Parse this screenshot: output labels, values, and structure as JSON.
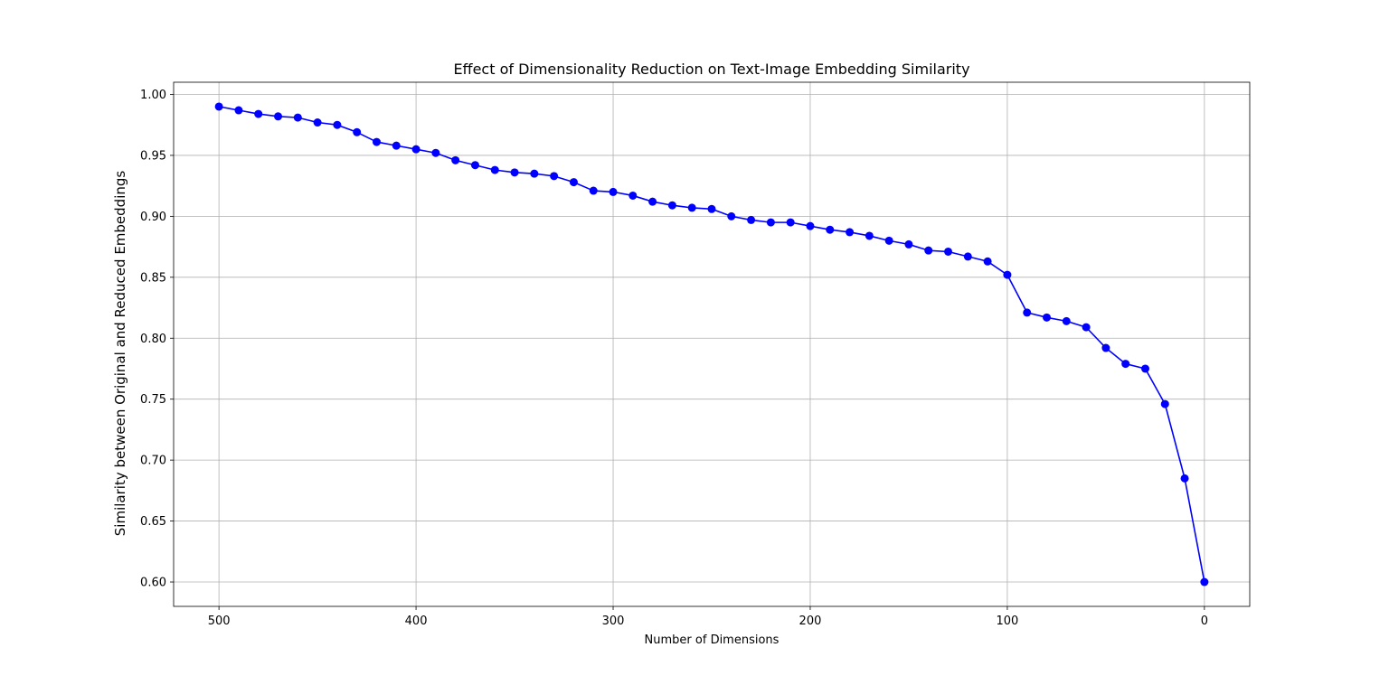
{
  "chart_data": {
    "type": "line",
    "title": "Effect of Dimensionality Reduction on Text-Image Embedding Similarity",
    "xlabel": "Number of Dimensions",
    "ylabel": "Similarity between Original and Reduced Embeddings",
    "xlim": [
      523,
      -23
    ],
    "ylim": [
      0.58,
      1.01
    ],
    "x_inverted": true,
    "grid": true,
    "x_ticks": [
      500,
      400,
      300,
      200,
      100,
      0
    ],
    "y_ticks": [
      1.0,
      0.95,
      0.9,
      0.85,
      0.8,
      0.75,
      0.7,
      0.65,
      0.6
    ],
    "series": [
      {
        "color": "#0000ff",
        "marker": "circle",
        "x": [
          500,
          490,
          480,
          470,
          460,
          450,
          440,
          430,
          420,
          410,
          400,
          390,
          380,
          370,
          360,
          350,
          340,
          330,
          320,
          310,
          300,
          290,
          280,
          270,
          260,
          250,
          240,
          230,
          220,
          210,
          200,
          190,
          180,
          170,
          160,
          150,
          140,
          130,
          120,
          110,
          100,
          90,
          80,
          70,
          60,
          50,
          40,
          30,
          20,
          10,
          0
        ],
        "y": [
          0.99,
          0.987,
          0.984,
          0.982,
          0.981,
          0.977,
          0.975,
          0.969,
          0.961,
          0.958,
          0.955,
          0.952,
          0.946,
          0.942,
          0.938,
          0.936,
          0.935,
          0.933,
          0.928,
          0.921,
          0.92,
          0.917,
          0.912,
          0.909,
          0.907,
          0.906,
          0.9,
          0.897,
          0.895,
          0.895,
          0.892,
          0.889,
          0.887,
          0.884,
          0.88,
          0.877,
          0.872,
          0.871,
          0.867,
          0.863,
          0.852,
          0.821,
          0.817,
          0.814,
          0.809,
          0.792,
          0.779,
          0.775,
          0.746,
          0.685,
          0.6
        ]
      }
    ]
  }
}
